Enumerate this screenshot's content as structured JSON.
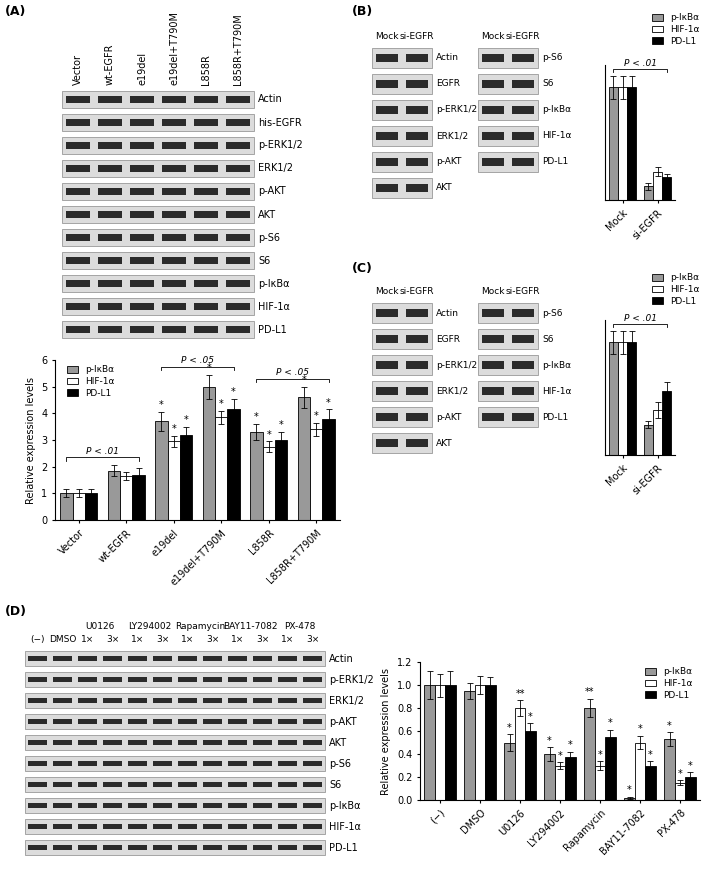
{
  "panels": [
    {
      "label": "(A)",
      "blots": [
        {
          "lane_groups": [
            {
              "label": "Vector"
            },
            {
              "label": "wt-EGFR"
            },
            {
              "label": "e19del"
            },
            {
              "label": "e19del+T790M"
            },
            {
              "label": "L858R"
            },
            {
              "label": "L858R+T790M"
            }
          ],
          "rows": [
            "Actin",
            "his-EGFR",
            "p-ERK1/2",
            "ERK1/2",
            "p-AKT",
            "AKT",
            "p-S6",
            "S6",
            "p-IκBα",
            "HIF-1α",
            "PD-L1"
          ]
        }
      ]
    },
    {
      "label": "(B)",
      "blots": [
        {
          "lane_groups": [
            {
              "label": "Mock"
            },
            {
              "label": "si-EGFR"
            }
          ],
          "rows": [
            "Actin",
            "EGFR",
            "p-ERK1/2",
            "ERK1/2",
            "p-AKT",
            "AKT"
          ]
        },
        {
          "lane_groups": [
            {
              "label": "Mock"
            },
            {
              "label": "si-EGFR"
            }
          ],
          "rows": [
            "p-S6",
            "S6",
            "p-IκBα",
            "HIF-1α",
            "PD-L1"
          ]
        }
      ]
    },
    {
      "label": "(C)",
      "blots": [
        {
          "lane_groups": [
            {
              "label": "Mock"
            },
            {
              "label": "si-EGFR"
            }
          ],
          "rows": [
            "Actin",
            "EGFR",
            "p-ERK1/2",
            "ERK1/2",
            "p-AKT",
            "AKT"
          ]
        },
        {
          "lane_groups": [
            {
              "label": "Mock"
            },
            {
              "label": "si-EGFR"
            }
          ],
          "rows": [
            "p-S6",
            "S6",
            "p-IκBα",
            "HIF-1α",
            "PD-L1"
          ]
        }
      ]
    },
    {
      "label": "(D)",
      "blots": [
        {
          "lane_groups": [
            {
              "label": "(−)"
            },
            {
              "label": "DMSO"
            },
            {
              "label": "U0126",
              "lanes": [
                "1×",
                "3×"
              ]
            },
            {
              "label": "LY294002",
              "lanes": [
                "1×",
                "3×"
              ]
            },
            {
              "label": "Rapamycin",
              "lanes": [
                "1×",
                "3×"
              ]
            },
            {
              "label": "BAY11-7082",
              "lanes": [
                "1×",
                "3×"
              ]
            },
            {
              "label": "PX-478",
              "lanes": [
                "1×",
                "3×"
              ]
            }
          ],
          "rows": [
            "Actin",
            "p-ERK1/2",
            "ERK1/2",
            "p-AKT",
            "AKT",
            "p-S6",
            "S6",
            "p-IκBα",
            "HIF-1α",
            "PD-L1"
          ]
        }
      ]
    }
  ],
  "chart_data": [
    {
      "type": "bar",
      "categories": [
        "Vector",
        "wt-EGFR",
        "e19del",
        "e19del+T790M",
        "L858R",
        "L858R+T790M"
      ],
      "series": [
        {
          "name": "p-IκBα",
          "color": "#999999",
          "values": [
            1.0,
            1.85,
            3.7,
            5.0,
            3.3,
            4.6
          ],
          "errors": [
            0.15,
            0.2,
            0.35,
            0.45,
            0.3,
            0.4
          ],
          "significance": [
            null,
            null,
            "*",
            "*",
            "*",
            "*"
          ]
        },
        {
          "name": "HIF-1α",
          "color": "#ffffff",
          "values": [
            1.0,
            1.65,
            2.95,
            3.85,
            2.75,
            3.4
          ],
          "errors": [
            0.15,
            0.15,
            0.2,
            0.25,
            0.2,
            0.25
          ],
          "significance": [
            null,
            null,
            "*",
            "*",
            "*",
            "*"
          ]
        },
        {
          "name": "PD-L1",
          "color": "#000000",
          "values": [
            1.0,
            1.7,
            3.2,
            4.15,
            3.0,
            3.8
          ],
          "errors": [
            0.15,
            0.25,
            0.3,
            0.4,
            0.3,
            0.35
          ],
          "significance": [
            null,
            null,
            "*",
            "*",
            "*",
            "*"
          ]
        }
      ],
      "ylabel": "Relative expression levels",
      "ylim": [
        0,
        6
      ],
      "yticks": [
        0,
        1,
        2,
        3,
        4,
        5,
        6
      ],
      "legend": "upper left",
      "annotations": [
        {
          "text": "P < .01",
          "from": "Vector",
          "to": "wt-EGFR"
        },
        {
          "text": "P < .05",
          "from": "e19del",
          "to": "e19del+T790M"
        },
        {
          "text": "P < .05",
          "from": "L858R",
          "to": "L858R+T790M"
        }
      ]
    },
    {
      "type": "bar",
      "categories": [
        "Mock",
        "si-EGFR"
      ],
      "series": [
        {
          "name": "p-IκBα",
          "color": "#999999",
          "values": [
            1.0,
            0.12
          ],
          "errors": [
            0.1,
            0.03
          ]
        },
        {
          "name": "HIF-1α",
          "color": "#ffffff",
          "values": [
            1.0,
            0.25
          ],
          "errors": [
            0.1,
            0.04
          ]
        },
        {
          "name": "PD-L1",
          "color": "#000000",
          "values": [
            1.0,
            0.2
          ],
          "errors": [
            0.1,
            0.03
          ]
        }
      ],
      "ylim": [
        0,
        1.2
      ],
      "tick_labels": "x",
      "legend": "upper right",
      "annotations": [
        {
          "text": "P < .01",
          "from": "Mock",
          "to": "si-EGFR"
        }
      ]
    },
    {
      "type": "bar",
      "categories": [
        "Mock",
        "si-EGFR"
      ],
      "series": [
        {
          "name": "p-IκBα",
          "color": "#999999",
          "values": [
            1.0,
            0.27
          ],
          "errors": [
            0.1,
            0.03
          ]
        },
        {
          "name": "HIF-1α",
          "color": "#ffffff",
          "values": [
            1.0,
            0.4
          ],
          "errors": [
            0.1,
            0.07
          ]
        },
        {
          "name": "PD-L1",
          "color": "#000000",
          "values": [
            1.0,
            0.57
          ],
          "errors": [
            0.1,
            0.08
          ]
        }
      ],
      "ylim": [
        0,
        1.2
      ],
      "tick_labels": "x",
      "legend": "upper right",
      "annotations": [
        {
          "text": "P < .01",
          "from": "Mock",
          "to": "si-EGFR"
        }
      ]
    },
    {
      "type": "bar",
      "categories": [
        "(−)",
        "DMSO",
        "U0126",
        "LY294002",
        "Rapamycin",
        "BAY11-7082",
        "PX-478"
      ],
      "series": [
        {
          "name": "p-IκBα",
          "color": "#999999",
          "values": [
            1.0,
            0.95,
            0.5,
            0.4,
            0.8,
            0.02,
            0.53
          ],
          "errors": [
            0.12,
            0.07,
            0.07,
            0.06,
            0.08,
            0.01,
            0.06
          ],
          "significance": [
            null,
            null,
            "*",
            "*",
            "**",
            "*",
            "*"
          ]
        },
        {
          "name": "HIF-1α",
          "color": "#ffffff",
          "values": [
            1.0,
            1.0,
            0.8,
            0.3,
            0.3,
            0.5,
            0.15
          ],
          "errors": [
            0.1,
            0.08,
            0.07,
            0.03,
            0.04,
            0.06,
            0.02
          ],
          "significance": [
            null,
            null,
            "**",
            "*",
            "*",
            "*",
            "*"
          ]
        },
        {
          "name": "PD-L1",
          "color": "#000000",
          "values": [
            1.0,
            1.0,
            0.6,
            0.37,
            0.55,
            0.3,
            0.2
          ],
          "errors": [
            0.12,
            0.07,
            0.07,
            0.05,
            0.06,
            0.04,
            0.04
          ],
          "significance": [
            null,
            null,
            "*",
            "*",
            "*",
            "*",
            "*"
          ]
        }
      ],
      "ylabel": "Relative expression levels",
      "ylim": [
        0,
        1.2
      ],
      "yticks": [
        0.0,
        0.2,
        0.4,
        0.6,
        0.8,
        1.0,
        1.2
      ],
      "legend": "upper right"
    }
  ]
}
